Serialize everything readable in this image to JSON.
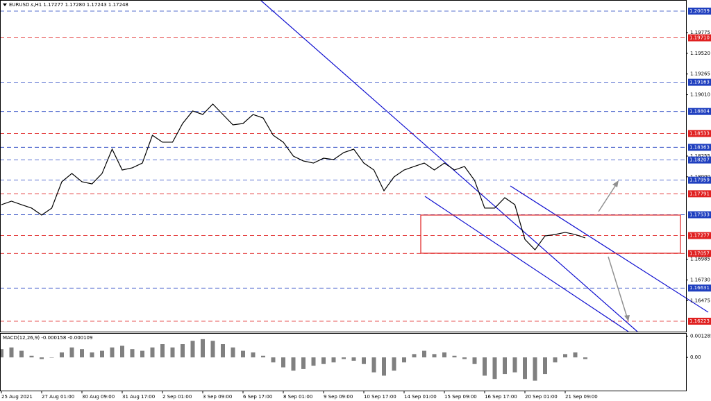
{
  "chart_data": [
    {
      "type": "line",
      "title": "EURUSD.s,H1  1.17277 1.17280 1.17243 1.17248",
      "color": "#000000",
      "categories": [
        "25 Aug 2021",
        null,
        null,
        null,
        "27 Aug 01:00",
        null,
        null,
        null,
        "30 Aug 09:00",
        null,
        null,
        null,
        "31 Aug 17:00",
        null,
        null,
        null,
        "2 Sep 01:00",
        null,
        null,
        null,
        "3 Sep 09:00",
        null,
        null,
        null,
        "6 Sep 17:00",
        null,
        null,
        null,
        "8 Sep 01:00",
        null,
        null,
        null,
        "9 Sep 09:00",
        null,
        null,
        null,
        "10 Sep 17:00",
        null,
        null,
        null,
        "14 Sep 01:00",
        null,
        null,
        null,
        "15 Sep 09:00",
        null,
        null,
        null,
        "16 Sep 17:00",
        null,
        null,
        null,
        "20 Sep 01:00",
        null,
        null,
        null,
        "21 Sep 09:00",
        null,
        null
      ],
      "values": [
        1.17657,
        1.177,
        1.17657,
        1.17615,
        1.17529,
        1.17615,
        1.17939,
        1.18041,
        1.17939,
        1.17913,
        1.18041,
        1.1834,
        1.18084,
        1.1811,
        1.18169,
        1.18511,
        1.18426,
        1.18426,
        1.18656,
        1.1881,
        1.18767,
        1.18895,
        1.18767,
        1.18639,
        1.18656,
        1.18767,
        1.18724,
        1.18511,
        1.18426,
        1.18255,
        1.18195,
        1.18169,
        1.18229,
        1.18212,
        1.18298,
        1.1834,
        1.18169,
        1.18084,
        1.17828,
        1.17999,
        1.18084,
        1.18127,
        1.18169,
        1.18084,
        1.18169,
        1.18084,
        1.18127,
        1.17956,
        1.17615,
        1.17615,
        1.17743,
        1.17657,
        1.1723,
        1.17102,
        1.17273,
        1.1729,
        1.17316,
        1.1729,
        1.17248
      ],
      "ylim": [
        1.16095,
        1.2015
      ],
      "yticks": [
        1.19775,
        {
          "value": 1.1952,
          "label": "1.19520"
        },
        1.19265,
        {
          "value": 1.1901,
          "label": "1.19010"
        },
        1.18255,
        {
          "value": 1.18,
          "label": "1.18000"
        },
        1.16985,
        {
          "value": 1.1673,
          "label": "1.16730"
        },
        1.16475
      ],
      "levels": [
        {
          "value": 1.20039,
          "label": "1.20039",
          "color": "#1f3fbf"
        },
        {
          "value": 1.1971,
          "label": "1.19710",
          "color": "#e02020"
        },
        {
          "value": 1.19163,
          "label": "1.19163",
          "color": "#1f3fbf"
        },
        {
          "value": 1.18804,
          "label": "1.18804",
          "color": "#1f3fbf"
        },
        {
          "value": 1.18533,
          "label": "1.18533",
          "color": "#e02020"
        },
        {
          "value": 1.18363,
          "label": "1.18363",
          "color": "#1f3fbf"
        },
        {
          "value": 1.18207,
          "label": "1.18207",
          "color": "#1f3fbf"
        },
        {
          "value": 1.17959,
          "label": "1.17959",
          "color": "#1f3fbf"
        },
        {
          "value": 1.17791,
          "label": "1.17791",
          "color": "#e02020"
        },
        {
          "value": 1.17533,
          "label": "1.17533",
          "color": "#1f3fbf"
        },
        {
          "value": 1.17277,
          "label": "1.17277",
          "color": "#e02020"
        },
        {
          "value": 1.17057,
          "label": "1.17057",
          "color": "#e02020"
        },
        {
          "value": 1.16631,
          "label": "1.16631",
          "color": "#1f3fbf"
        },
        {
          "value": 1.16223,
          "label": "1.16223",
          "color": "#e02020"
        }
      ]
    },
    {
      "type": "bar",
      "title": "MACD(12,26,9) -0.000158 -0.000109",
      "color": "#808080",
      "values": [
        0.0005,
        0.0006,
        0.0004,
        0.0001,
        -0.0001,
        0,
        0.0003,
        0.0006,
        0.0005,
        0.0003,
        0.0004,
        0.0006,
        0.0007,
        0.0005,
        0.0004,
        0.0006,
        0.0008,
        0.0006,
        0.0008,
        0.001,
        0.0011,
        0.001,
        0.0008,
        0.0006,
        0.0004,
        0.0003,
        0.0001,
        -0.0003,
        -0.0006,
        -0.0008,
        -0.0007,
        -0.0005,
        -0.0004,
        -0.0003,
        -0.0001,
        -0.0002,
        -0.0004,
        -0.0009,
        -0.0011,
        -0.0008,
        -0.0003,
        0.0002,
        0.0004,
        0.0002,
        0.0003,
        0.0001,
        -0.0001,
        -0.0004,
        -0.0011,
        -0.0013,
        -0.001,
        -0.0009,
        -0.0013,
        -0.0014,
        -0.001,
        -0.0003,
        0.0002,
        0.0003,
        -0.0001
      ],
      "ylim": [
        -0.002,
        0.001428
      ],
      "yticks": [
        0.001285,
        {
          "value": 0,
          "label": "0.00"
        }
      ]
    }
  ]
}
